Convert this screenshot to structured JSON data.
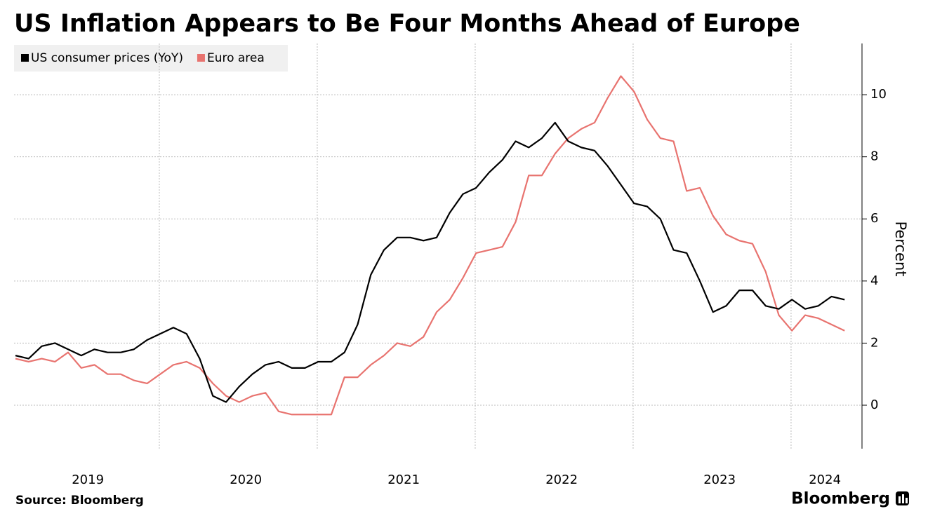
{
  "chart_data": {
    "type": "line",
    "title": "US Inflation Appears to Be Four Months Ahead of Europe",
    "y_label": "Percent",
    "source": "Source: Bloomberg",
    "brand": "Bloomberg",
    "categories": [
      null,
      null,
      null,
      null,
      null,
      null,
      "2019",
      null,
      null,
      null,
      null,
      null,
      null,
      null,
      null,
      null,
      null,
      null,
      "2020",
      null,
      null,
      null,
      null,
      null,
      null,
      null,
      null,
      null,
      null,
      null,
      "2021",
      null,
      null,
      null,
      null,
      null,
      null,
      null,
      null,
      null,
      null,
      null,
      "2022",
      null,
      null,
      null,
      null,
      null,
      null,
      null,
      null,
      null,
      null,
      null,
      "2023",
      null,
      null,
      null,
      null,
      null,
      null,
      null,
      "2024",
      null
    ],
    "series": [
      {
        "name": "US consumer prices (YoY)",
        "color": "#000000",
        "values": [
          1.6,
          1.5,
          1.9,
          2.0,
          1.8,
          1.6,
          1.8,
          1.7,
          1.7,
          1.8,
          2.1,
          2.3,
          2.5,
          2.3,
          1.5,
          0.3,
          0.1,
          0.6,
          1.0,
          1.3,
          1.4,
          1.2,
          1.2,
          1.4,
          1.4,
          1.7,
          2.6,
          4.2,
          5.0,
          5.4,
          5.4,
          5.3,
          5.4,
          6.2,
          6.8,
          7.0,
          7.5,
          7.9,
          8.5,
          8.3,
          8.6,
          9.1,
          8.5,
          8.3,
          8.2,
          7.7,
          7.1,
          6.5,
          6.4,
          6.0,
          5.0,
          4.9,
          4.0,
          3.0,
          3.2,
          3.7,
          3.7,
          3.2,
          3.1,
          3.4,
          3.1,
          3.2,
          3.5,
          3.4
        ]
      },
      {
        "name": "Euro area",
        "color": "#e8736f",
        "values": [
          1.5,
          1.4,
          1.5,
          1.4,
          1.7,
          1.2,
          1.3,
          1.0,
          1.0,
          0.8,
          0.7,
          1.0,
          1.3,
          1.4,
          1.2,
          0.7,
          0.3,
          0.1,
          0.3,
          0.4,
          -0.2,
          -0.3,
          -0.3,
          -0.3,
          -0.3,
          0.9,
          0.9,
          1.3,
          1.6,
          2.0,
          1.9,
          2.2,
          3.0,
          3.4,
          4.1,
          4.9,
          5.0,
          5.1,
          5.9,
          7.4,
          7.4,
          8.1,
          8.6,
          8.9,
          9.1,
          9.9,
          10.6,
          10.1,
          9.2,
          8.6,
          8.5,
          6.9,
          7.0,
          6.1,
          5.5,
          5.3,
          5.2,
          4.3,
          2.9,
          2.4,
          2.9,
          2.8,
          2.6,
          2.4
        ]
      }
    ],
    "ylim": [
      -1.4,
      11.65
    ],
    "yticks": [
      0,
      2,
      4,
      6,
      8,
      10
    ],
    "grid": true,
    "legend": "top-left"
  }
}
